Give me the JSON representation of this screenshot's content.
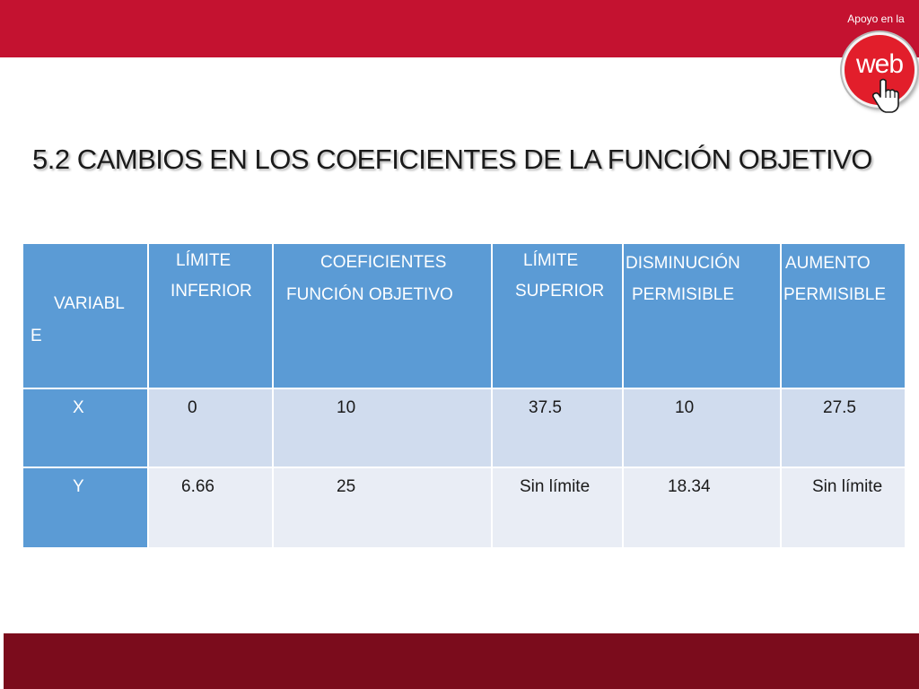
{
  "logo": {
    "caption": "Apoyo en la",
    "word": "web"
  },
  "title": "5.2 CAMBIOS EN LOS COEFICIENTES DE LA FUNCIÓN OBJETIVO",
  "colors": {
    "top_bar": "#c41230",
    "bottom_bar": "#7b0c1c",
    "header_fill": "#5b9bd5",
    "row_x_fill": "#d0dcee",
    "row_y_fill": "#e9edf5"
  },
  "table": {
    "headers": {
      "variable": [
        "VARIABL",
        "E"
      ],
      "limite_inferior": [
        "LÍMITE",
        "INFERIOR"
      ],
      "coeficientes": [
        "COEFICIENTES",
        "FUNCIÓN OBJETIVO"
      ],
      "limite_superior": [
        "LÍMITE",
        "SUPERIOR"
      ],
      "disminucion": [
        "DISMINUCIÓN",
        "PERMISIBLE"
      ],
      "aumento": [
        "AUMENTO",
        "PERMISIBLE"
      ]
    },
    "rows": [
      {
        "variable": "X",
        "limite_inferior": "0",
        "coeficiente": "10",
        "limite_superior": "37.5",
        "disminucion": "10",
        "aumento": "27.5"
      },
      {
        "variable": "Y",
        "limite_inferior": "6.66",
        "coeficiente": "25",
        "limite_superior": "Sin límite",
        "disminucion": "18.34",
        "aumento": "Sin límite"
      }
    ]
  }
}
